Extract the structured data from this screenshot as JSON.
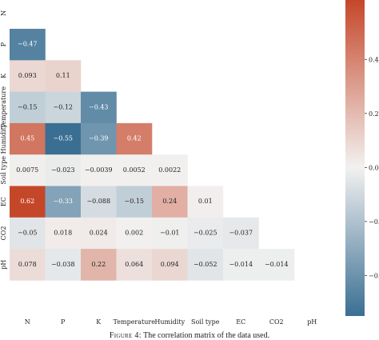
{
  "caption": {
    "figure_label": "Figure 4:",
    "text": "The correlation matrix of the data used."
  },
  "colors": {
    "negative": "#3a6f93",
    "neutral": "#f2f1f0",
    "positive": "#c5472a"
  },
  "chart_data": {
    "type": "heatmap",
    "variables": [
      "N",
      "P",
      "K",
      "Temperature",
      "Humidity",
      "Soil type",
      "EC",
      "CO2",
      "pH"
    ],
    "ytick_labels": [
      "N",
      "P",
      "K",
      "Temperature",
      "Humidity",
      "Soil type",
      "EC",
      "CO2",
      "pH"
    ],
    "xtick_labels": [
      "N",
      "P",
      "K",
      "Temperature",
      "Humidity",
      "Soil type",
      "EC",
      "CO2",
      "pH"
    ],
    "mask": "upper-triangle",
    "cells": [
      {
        "row": 1,
        "col": 0,
        "value": -0.47,
        "label": "−0.47"
      },
      {
        "row": 2,
        "col": 0,
        "value": 0.093,
        "label": "0.093"
      },
      {
        "row": 2,
        "col": 1,
        "value": 0.11,
        "label": "0.11"
      },
      {
        "row": 3,
        "col": 0,
        "value": -0.15,
        "label": "−0.15"
      },
      {
        "row": 3,
        "col": 1,
        "value": -0.12,
        "label": "−0.12"
      },
      {
        "row": 3,
        "col": 2,
        "value": -0.43,
        "label": "−0.43"
      },
      {
        "row": 4,
        "col": 0,
        "value": 0.45,
        "label": "0.45"
      },
      {
        "row": 4,
        "col": 1,
        "value": -0.55,
        "label": "−0.55"
      },
      {
        "row": 4,
        "col": 2,
        "value": -0.39,
        "label": "−0.39"
      },
      {
        "row": 4,
        "col": 3,
        "value": 0.42,
        "label": "0.42"
      },
      {
        "row": 5,
        "col": 0,
        "value": 0.0075,
        "label": "0.0075"
      },
      {
        "row": 5,
        "col": 1,
        "value": -0.023,
        "label": "−0.023"
      },
      {
        "row": 5,
        "col": 2,
        "value": -0.0039,
        "label": "−0.0039"
      },
      {
        "row": 5,
        "col": 3,
        "value": 0.0052,
        "label": "0.0052"
      },
      {
        "row": 5,
        "col": 4,
        "value": 0.0022,
        "label": "0.0022"
      },
      {
        "row": 6,
        "col": 0,
        "value": 0.62,
        "label": "0.62"
      },
      {
        "row": 6,
        "col": 1,
        "value": -0.33,
        "label": "−0.33"
      },
      {
        "row": 6,
        "col": 2,
        "value": -0.088,
        "label": "−0.088"
      },
      {
        "row": 6,
        "col": 3,
        "value": -0.15,
        "label": "−0.15"
      },
      {
        "row": 6,
        "col": 4,
        "value": 0.24,
        "label": "0.24"
      },
      {
        "row": 6,
        "col": 5,
        "value": 0.01,
        "label": "0.01"
      },
      {
        "row": 7,
        "col": 0,
        "value": -0.05,
        "label": "−0.05"
      },
      {
        "row": 7,
        "col": 1,
        "value": 0.018,
        "label": "0.018"
      },
      {
        "row": 7,
        "col": 2,
        "value": 0.024,
        "label": "0.024"
      },
      {
        "row": 7,
        "col": 3,
        "value": 0.002,
        "label": "0.002"
      },
      {
        "row": 7,
        "col": 4,
        "value": -0.01,
        "label": "−0.01"
      },
      {
        "row": 7,
        "col": 5,
        "value": -0.025,
        "label": "−0.025"
      },
      {
        "row": 7,
        "col": 6,
        "value": -0.037,
        "label": "−0.037"
      },
      {
        "row": 8,
        "col": 0,
        "value": 0.078,
        "label": "0.078"
      },
      {
        "row": 8,
        "col": 1,
        "value": -0.038,
        "label": "−0.038"
      },
      {
        "row": 8,
        "col": 2,
        "value": 0.22,
        "label": "0.22"
      },
      {
        "row": 8,
        "col": 3,
        "value": 0.064,
        "label": "0.064"
      },
      {
        "row": 8,
        "col": 4,
        "value": 0.094,
        "label": "0.094"
      },
      {
        "row": 8,
        "col": 5,
        "value": -0.052,
        "label": "−0.052"
      },
      {
        "row": 8,
        "col": 6,
        "value": -0.014,
        "label": "−0.014"
      },
      {
        "row": 8,
        "col": 7,
        "value": -0.014,
        "label": "−0.014"
      }
    ],
    "colorbar": {
      "range": [
        -0.55,
        0.62
      ],
      "ticks": [
        0.4,
        0.2,
        0.0,
        -0.2,
        -0.4
      ],
      "tick_labels": [
        "0.4",
        "0.2",
        "0.0",
        "−0.2",
        "−0.4"
      ]
    }
  }
}
